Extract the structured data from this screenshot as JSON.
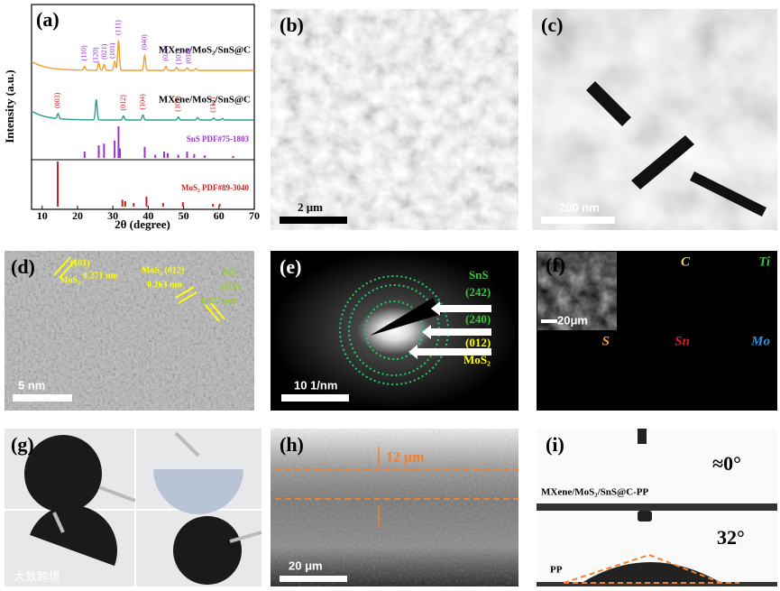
{
  "a": {
    "label": "(a)",
    "ylabel": "Intensity (a.u.)",
    "xlabel": "2θ (degree)",
    "xlim": [
      7,
      70
    ],
    "xticks": [
      10,
      20,
      30,
      40,
      50,
      60,
      70
    ],
    "curves": [
      {
        "name": "MXene/MoS₂/SnS@C",
        "color": "#f0a030",
        "label_color": "#9933cc",
        "peaks_x": [
          22,
          26,
          27.5,
          30.5,
          31.6,
          39,
          45,
          48,
          51,
          53.5
        ],
        "peaks_h": [
          8,
          15,
          12,
          18,
          60,
          30,
          8,
          6,
          5,
          4
        ],
        "hkl_x": [
          22,
          25.3,
          27.7,
          30,
          31.6,
          39,
          45,
          48.8,
          51.6
        ],
        "hkl": [
          "(110)",
          "(120)",
          "(021)",
          "(101)",
          "(111)",
          "(040)",
          "(021)",
          "(107)",
          "(018)"
        ]
      },
      {
        "name": "MXene/MoS₂/SnS@C",
        "color": "#2a9d8f",
        "label_color": "#cc2222",
        "peaks_x": [
          14.5,
          25.3,
          33,
          38.5,
          48.5,
          54,
          58.5,
          61
        ],
        "peaks_h": [
          10,
          40,
          8,
          10,
          6,
          5,
          4,
          3
        ],
        "hkl_x": [
          14.5,
          33,
          38.5,
          48.5,
          58.5
        ],
        "hkl": [
          "(003)",
          "(012)",
          "(104)",
          "(107)",
          "(113)"
        ]
      }
    ],
    "refs": [
      {
        "name": "SnS PDF#75-1803",
        "color": "#9933cc",
        "x": [
          22,
          26,
          27.5,
          30.5,
          31.6,
          32,
          39,
          42,
          44.5,
          45.5,
          48.5,
          51,
          53,
          56,
          64
        ],
        "h": [
          20,
          40,
          45,
          55,
          100,
          30,
          35,
          10,
          20,
          15,
          10,
          20,
          12,
          8,
          6
        ]
      },
      {
        "name": "MoS₂ PDF#89-3040",
        "color": "#cc2222",
        "x": [
          14.4,
          32.7,
          33.5,
          35.9,
          39.5,
          44.2,
          49.8,
          58.3,
          60.2
        ],
        "h": [
          100,
          15,
          12,
          8,
          22,
          8,
          10,
          6,
          6
        ]
      }
    ]
  },
  "b": {
    "label": "(b)",
    "scale": "2 μm"
  },
  "c": {
    "label": "(c)",
    "scale": "200 nm"
  },
  "d": {
    "label": "(d)",
    "hkl1": "(101)",
    "phase1": "MoS₂",
    "d1": "0.271 nm",
    "phase2": "MoS₂ (012)",
    "d2": "0.263 nm",
    "phase3": "SnS",
    "hkl3": "(111)",
    "d3": "0.377 nm",
    "scale": "5 nm"
  },
  "e": {
    "label": "(e)",
    "phase1": "SnS",
    "ring1": "(242)",
    "ring2": "(240)",
    "ring3": "(012)",
    "phase2": "MoS₂",
    "scale": "10 1/nm"
  },
  "f": {
    "label": "(f)",
    "scale": "20μm",
    "elements": [
      "C",
      "Ti",
      "S",
      "Sn",
      "Mo"
    ]
  },
  "g": {
    "label": "(g)"
  },
  "h": {
    "label": "(h)",
    "thickness": "12 μm",
    "scale": "20 μm"
  },
  "i": {
    "label": "(i)",
    "angle1": "≈0°",
    "sample1": "MXene/MoS₂/SnS@C-PP",
    "angle2": "32°",
    "sample2": "PP"
  },
  "watermark": "大数跨境"
}
